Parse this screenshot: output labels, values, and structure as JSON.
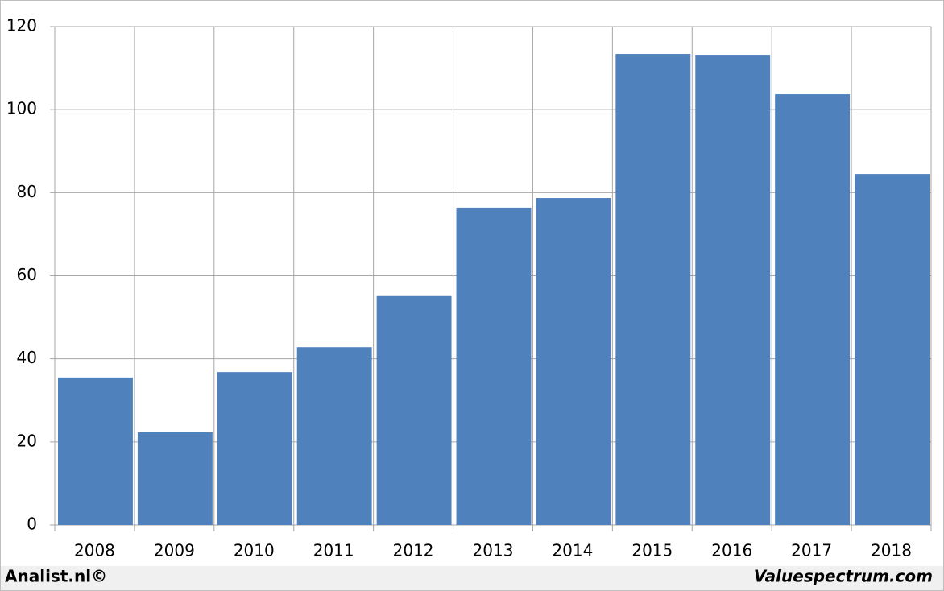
{
  "chart_data": {
    "type": "bar",
    "categories": [
      "2008",
      "2009",
      "2010",
      "2011",
      "2012",
      "2013",
      "2014",
      "2015",
      "2016",
      "2017",
      "2018"
    ],
    "values": [
      35.5,
      22.3,
      36.8,
      42.8,
      55.1,
      76.4,
      78.7,
      113.4,
      113.2,
      103.7,
      84.5
    ],
    "color": "#4f81bd",
    "ylim": [
      0,
      120
    ],
    "yticks": [
      0,
      20,
      40,
      60,
      80,
      100,
      120
    ],
    "grid": true,
    "footer_left": "Analist.nl©",
    "footer_right": "Valuespectrum.com"
  }
}
